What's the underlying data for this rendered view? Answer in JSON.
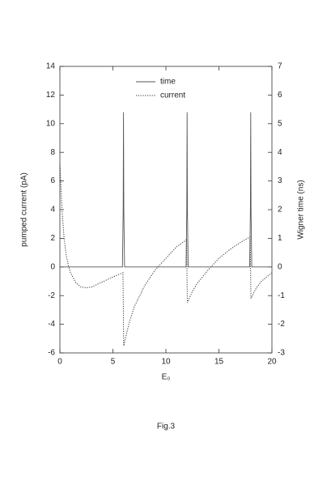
{
  "chart_data": {
    "type": "line",
    "caption": "Fig.3",
    "xlabel": "E₀",
    "ylabel": "pumped current (pA)",
    "y2label": "Wigner time (ns)",
    "xlim": [
      0,
      20
    ],
    "xticks": [
      0,
      5,
      10,
      15,
      20
    ],
    "ylim": [
      -6,
      14
    ],
    "yticks": [
      -6,
      -4,
      -2,
      0,
      2,
      4,
      6,
      8,
      10,
      12,
      14
    ],
    "y2lim": [
      -3,
      7
    ],
    "y2ticks": [
      -3,
      -2,
      -1,
      0,
      1,
      2,
      3,
      4,
      5,
      6,
      7
    ],
    "series": [
      {
        "name": "time",
        "color": "#555555",
        "style": "solid",
        "axis": "y2",
        "x": [
          0,
          5.9,
          5.97,
          6,
          6.03,
          6.1,
          11.9,
          11.97,
          12,
          12.03,
          12.1,
          17.9,
          17.97,
          18,
          18.03,
          18.1,
          20
        ],
        "values": [
          0,
          0,
          2,
          5.4,
          2,
          0,
          0,
          2,
          5.4,
          2,
          0,
          0,
          2,
          5.4,
          2,
          0,
          0
        ]
      },
      {
        "name": "current",
        "color": "#333333",
        "style": "dotted",
        "x": [
          0,
          0.2,
          0.4,
          0.6,
          0.8,
          1,
          1.5,
          2,
          2.5,
          3,
          4,
          5,
          5.95,
          6.02,
          6.5,
          7,
          8,
          9,
          10,
          11,
          11.95,
          12.02,
          12.5,
          13,
          14,
          15,
          16,
          17,
          17.95,
          18.02,
          18.5,
          19,
          20
        ],
        "values": [
          7.2,
          4,
          2,
          0.8,
          0.1,
          -0.4,
          -1.1,
          -1.4,
          -1.45,
          -1.4,
          -1.05,
          -0.7,
          -0.4,
          -5.5,
          -4,
          -2.8,
          -1.3,
          -0.2,
          0.6,
          1.4,
          1.9,
          -2.5,
          -1.7,
          -1.1,
          -0.2,
          0.6,
          1.2,
          1.7,
          2.1,
          -2.2,
          -1.5,
          -1,
          -0.4
        ]
      }
    ]
  }
}
